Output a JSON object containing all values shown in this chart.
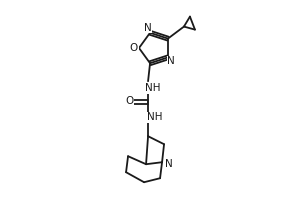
{
  "line_color": "#1a1a1a",
  "line_width": 1.3,
  "font_size": 7.5,
  "figsize": [
    3.0,
    2.0
  ],
  "dpi": 100,
  "xlim": [
    0,
    300
  ],
  "ylim": [
    0,
    200
  ]
}
